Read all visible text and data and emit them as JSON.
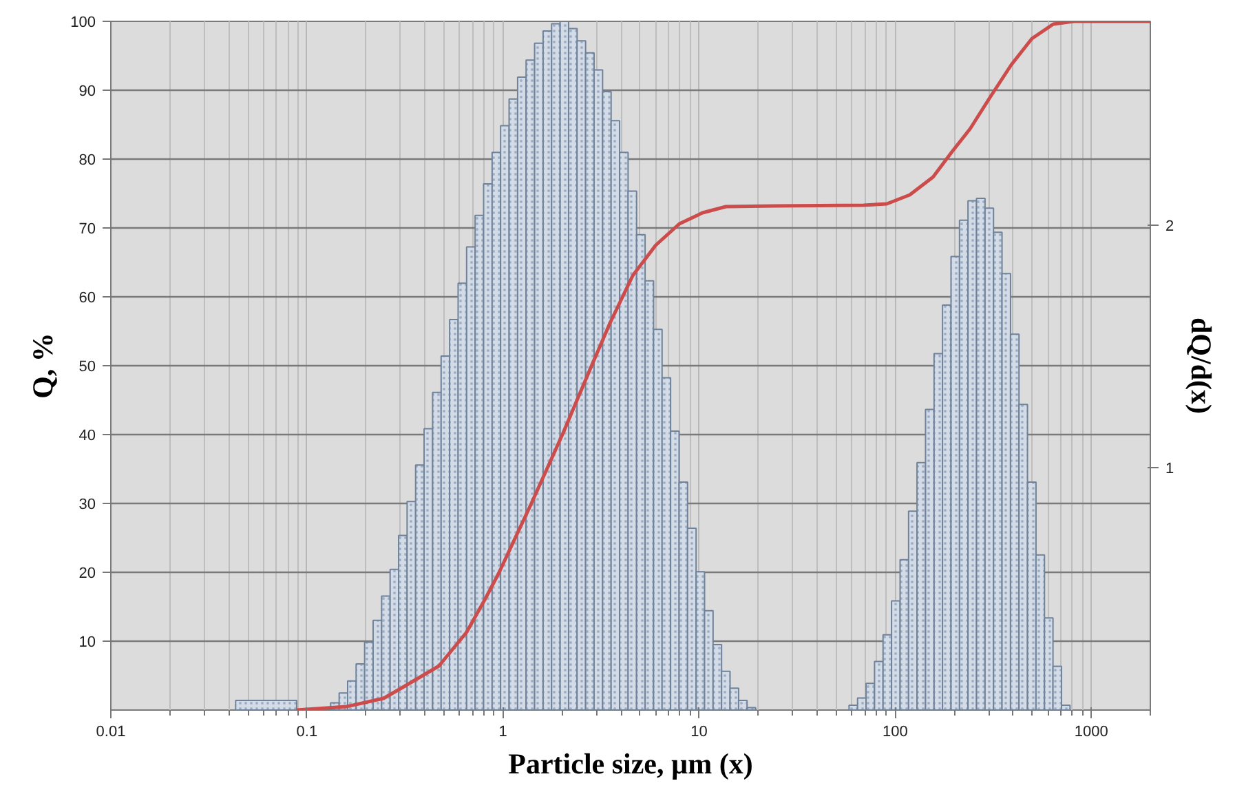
{
  "chart_data": {
    "type": "histogram",
    "xlabel": "Particle size, µm (x)",
    "ylabel": "Q, %",
    "y2label": "dQ/d(x)",
    "log": "x",
    "grid": true,
    "xlim": [
      0.01,
      2000
    ],
    "xticks": [
      0.01,
      0.1,
      1,
      10,
      100,
      1000
    ],
    "ylim": [
      0,
      100
    ],
    "yticks": [
      10,
      20,
      30,
      40,
      50,
      60,
      70,
      80,
      90,
      100
    ],
    "y2lim": [
      0,
      2.84
    ],
    "y2ticks": [
      1,
      2
    ],
    "series": [
      {
        "axis": "y2",
        "color": "#d3dbe6",
        "bins": [
          0.0433,
          0.0886,
          0.1321,
          0.146,
          0.1613,
          0.1782,
          0.1969,
          0.2176,
          0.2404,
          0.2656,
          0.2935,
          0.3243,
          0.3583,
          0.3959,
          0.4375,
          0.4835,
          0.5342,
          0.5902,
          0.6522,
          0.7207,
          0.7963,
          0.8798,
          0.9721,
          1.074,
          1.187,
          1.311,
          1.449,
          1.601,
          1.769,
          1.955,
          2.16,
          2.387,
          2.637,
          2.914,
          3.22,
          3.558,
          3.931,
          4.343,
          4.799,
          5.303,
          5.859,
          6.474,
          7.154,
          7.905,
          8.734,
          9.651,
          10.66,
          11.78,
          13.02,
          14.38,
          15.9,
          17.56,
          19.41,
          58.16,
          64.27,
          71.01,
          78.46,
          86.69,
          95.8,
          105.9,
          117,
          129.2,
          142.8,
          157.8,
          174.3,
          192.6,
          212.8,
          235.1,
          259.8,
          287.1,
          317.2,
          350.5,
          387.3,
          427.9,
          472.8,
          522.4,
          577.2,
          637.8,
          704.7,
          778.7
        ],
        "values": [
          0.04,
          null,
          0.03,
          0.07,
          0.12,
          0.19,
          0.28,
          0.37,
          0.47,
          0.58,
          0.72,
          0.86,
          1.01,
          1.16,
          1.31,
          1.46,
          1.61,
          1.76,
          1.91,
          2.04,
          2.17,
          2.3,
          2.41,
          2.52,
          2.61,
          2.68,
          2.75,
          2.8,
          2.83,
          2.84,
          2.81,
          2.76,
          2.71,
          2.64,
          2.55,
          2.43,
          2.3,
          2.14,
          1.96,
          1.77,
          1.57,
          1.37,
          1.15,
          0.94,
          0.75,
          0.57,
          0.41,
          0.27,
          0.16,
          0.09,
          0.04,
          0.01,
          null,
          0.02,
          0.05,
          0.11,
          0.2,
          0.31,
          0.45,
          0.62,
          0.82,
          1.02,
          1.24,
          1.47,
          1.67,
          1.87,
          2.02,
          2.1,
          2.11,
          2.07,
          1.97,
          1.8,
          1.55,
          1.26,
          0.94,
          0.64,
          0.38,
          0.18,
          0.02
        ]
      },
      {
        "type": "line",
        "axis": "y",
        "color": "#cc4c4c",
        "x": [
          0.0885,
          0.159,
          0.246,
          0.308,
          0.471,
          0.652,
          0.81,
          0.952,
          1.39,
          2.03,
          2.82,
          3.5,
          4.59,
          6.01,
          7.93,
          10.4,
          13.7,
          24.6,
          69,
          90.6,
          118.6,
          156,
          194,
          241,
          305,
          391,
          498,
          640,
          814,
          2000
        ],
        "values": [
          0,
          0.5,
          1.7,
          3.3,
          6.4,
          11.3,
          16.1,
          19.9,
          29.9,
          40.3,
          49.9,
          56.1,
          63.1,
          67.5,
          70.6,
          72.2,
          73.1,
          73.2,
          73.3,
          73.5,
          74.8,
          77.4,
          81,
          84.4,
          89,
          93.7,
          97.5,
          99.6,
          100,
          100
        ]
      }
    ]
  }
}
